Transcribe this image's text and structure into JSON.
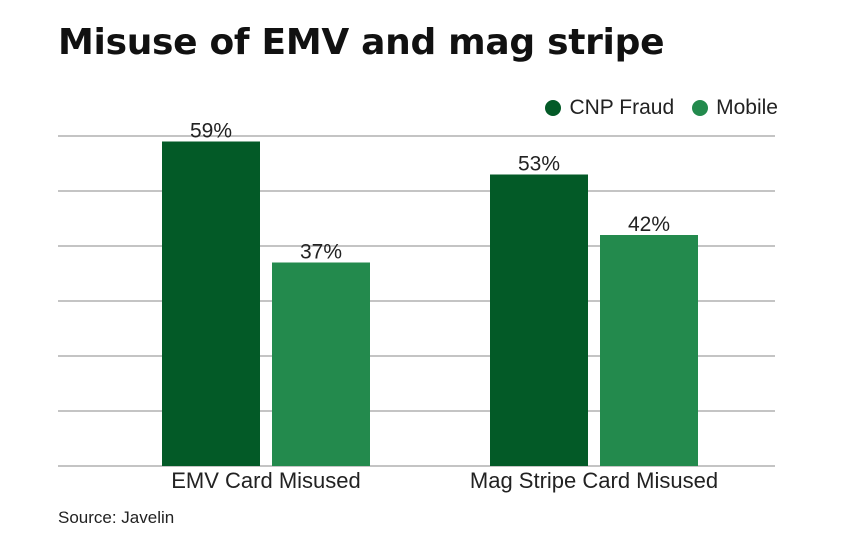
{
  "title": "Misuse of EMV and mag stripe",
  "source": "Source: Javelin",
  "colors": {
    "cnp": "#035a27",
    "mobile": "#238a4d",
    "grid": "#8a8a8a"
  },
  "chart_data": {
    "type": "bar",
    "title": "Misuse of EMV and mag stripe",
    "categories": [
      "EMV Card Misused",
      "Mag Stripe Card Misused"
    ],
    "series": [
      {
        "name": "CNP Fraud",
        "values": [
          59,
          53
        ],
        "labels": [
          "59%",
          "53%"
        ],
        "color": "#035a27"
      },
      {
        "name": "Mobile",
        "values": [
          37,
          42
        ],
        "labels": [
          "37%",
          "42%"
        ],
        "color": "#238a4d"
      }
    ],
    "ylim": [
      0,
      60
    ],
    "grid": true,
    "legend": "top-right",
    "xlabel": "",
    "ylabel": ""
  }
}
